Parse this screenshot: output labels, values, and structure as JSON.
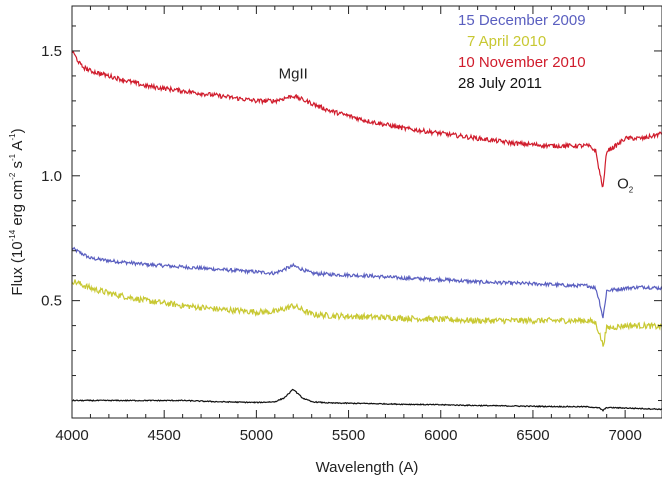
{
  "chart_data": {
    "type": "line",
    "xlabel": "Wavelength (A)",
    "ylabel": "Flux (10⁻¹⁴ erg cm⁻² s⁻¹ A⁻¹)",
    "ylabel_parts": {
      "prefix": "Flux (10",
      "exp1": "-14",
      "mid1": " erg cm",
      "exp2": "-2",
      "mid2": " s",
      "exp3": "-1",
      "mid3": " A",
      "exp4": "-1",
      "suffix": ")"
    },
    "xlim": [
      4000,
      7200
    ],
    "ylim": [
      0.03,
      1.68
    ],
    "xticks": [
      4000,
      4500,
      5000,
      5500,
      6000,
      6500,
      7000
    ],
    "yticks": [
      0.5,
      1.0,
      1.5
    ],
    "ytick_labels": [
      "0.5",
      "1.0",
      "1.5"
    ],
    "grid": false,
    "legend_position": "top-right",
    "annotations": [
      {
        "text": "MgII",
        "x": 5200,
        "y": 1.39
      },
      {
        "text": "O",
        "sub": "2",
        "x": 7000,
        "y": 0.95
      }
    ],
    "series": [
      {
        "name": "15 December 2009",
        "color": "#5a5fc0",
        "x": [
          4000,
          4100,
          4200,
          4400,
          4600,
          4800,
          5000,
          5100,
          5200,
          5300,
          5400,
          5600,
          5800,
          6000,
          6200,
          6400,
          6600,
          6700,
          6800,
          6840,
          6860,
          6880,
          6900,
          6950,
          7000,
          7100,
          7200
        ],
        "y": [
          0.71,
          0.67,
          0.66,
          0.645,
          0.635,
          0.625,
          0.615,
          0.61,
          0.64,
          0.61,
          0.605,
          0.6,
          0.59,
          0.585,
          0.575,
          0.57,
          0.565,
          0.56,
          0.56,
          0.55,
          0.5,
          0.43,
          0.54,
          0.545,
          0.55,
          0.555,
          0.55
        ],
        "noise": 0.007
      },
      {
        "name": "7 April 2010",
        "color": "#c8c832",
        "x": [
          4000,
          4100,
          4200,
          4400,
          4600,
          4800,
          5000,
          5100,
          5200,
          5300,
          5400,
          5600,
          5800,
          6000,
          6200,
          6400,
          6600,
          6700,
          6800,
          6840,
          6860,
          6880,
          6900,
          6950,
          7000,
          7100,
          7200
        ],
        "y": [
          0.58,
          0.55,
          0.53,
          0.5,
          0.48,
          0.465,
          0.455,
          0.455,
          0.48,
          0.445,
          0.44,
          0.435,
          0.43,
          0.425,
          0.42,
          0.42,
          0.42,
          0.42,
          0.42,
          0.41,
          0.37,
          0.32,
          0.39,
          0.395,
          0.4,
          0.4,
          0.395
        ],
        "noise": 0.012
      },
      {
        "name": "10 November 2010",
        "color": "#d01c2c",
        "x": [
          4000,
          4050,
          4100,
          4200,
          4400,
          4600,
          4800,
          5000,
          5100,
          5200,
          5300,
          5400,
          5600,
          5800,
          6000,
          6200,
          6400,
          6600,
          6700,
          6800,
          6840,
          6860,
          6880,
          6900,
          6950,
          7000,
          7100,
          7200
        ],
        "y": [
          1.5,
          1.44,
          1.42,
          1.4,
          1.36,
          1.34,
          1.32,
          1.3,
          1.3,
          1.32,
          1.29,
          1.26,
          1.22,
          1.19,
          1.17,
          1.15,
          1.13,
          1.12,
          1.12,
          1.12,
          1.1,
          1.02,
          0.95,
          1.1,
          1.12,
          1.15,
          1.15,
          1.17
        ],
        "noise": 0.009
      },
      {
        "name": "28 July 2011",
        "color": "#111111",
        "x": [
          4000,
          4200,
          4400,
          4600,
          4800,
          5000,
          5100,
          5150,
          5200,
          5250,
          5300,
          5400,
          5600,
          5800,
          6000,
          6200,
          6400,
          6600,
          6800,
          6860,
          6880,
          6900,
          7000,
          7200
        ],
        "y": [
          0.1,
          0.1,
          0.1,
          0.1,
          0.095,
          0.092,
          0.095,
          0.11,
          0.145,
          0.11,
          0.095,
          0.09,
          0.088,
          0.085,
          0.083,
          0.08,
          0.078,
          0.076,
          0.075,
          0.07,
          0.06,
          0.072,
          0.07,
          0.065
        ],
        "noise": 0.002
      }
    ]
  }
}
